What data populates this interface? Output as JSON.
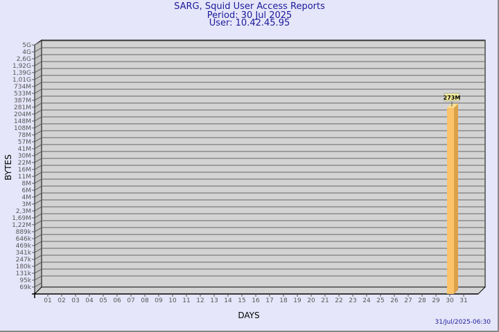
{
  "chart_data": {
    "type": "bar",
    "title": "SARG, Squid User Access Reports",
    "subtitle_period": "Period: 30 Jul 2025",
    "subtitle_user": "User: 10.42.45.95",
    "xlabel": "DAYS",
    "ylabel": "BYTES",
    "y_scale": "log",
    "grid": true,
    "y_ticks": [
      "69k",
      "95k",
      "131k",
      "180k",
      "247k",
      "341k",
      "469k",
      "646k",
      "889k",
      "1,22M",
      "1,69M",
      "2,3M",
      "3M",
      "4M",
      "6M",
      "8M",
      "11M",
      "16M",
      "22M",
      "30M",
      "41M",
      "57M",
      "78M",
      "108M",
      "148M",
      "204M",
      "281M",
      "387M",
      "533M",
      "734M",
      "1,01G",
      "1,39G",
      "1,92G",
      "2,6G",
      "4G",
      "5G"
    ],
    "categories": [
      "01",
      "02",
      "03",
      "04",
      "05",
      "06",
      "07",
      "08",
      "09",
      "10",
      "11",
      "12",
      "13",
      "14",
      "15",
      "16",
      "17",
      "18",
      "19",
      "20",
      "21",
      "22",
      "23",
      "24",
      "25",
      "26",
      "27",
      "28",
      "29",
      "30",
      "31"
    ],
    "bars": [
      {
        "day": "30",
        "value_label": "273M"
      }
    ],
    "colors": {
      "background": "#e6e6fa",
      "plot": "#d3d3d3",
      "bar": "#fcc36a",
      "bar_side": "#dca24a",
      "text": "#1a1a9a"
    }
  },
  "footer": {
    "timestamp": "31/Jul/2025-06:30"
  }
}
